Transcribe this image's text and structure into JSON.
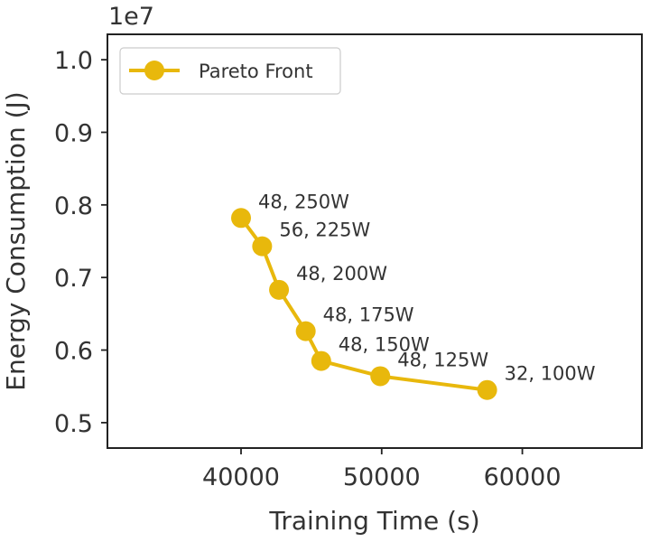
{
  "chart_data": {
    "type": "line",
    "xlabel": "Training Time (s)",
    "ylabel": "Energy Consumption (J)",
    "y_offset_label": "1e7",
    "xlim": [
      30500,
      68500
    ],
    "ylim": [
      0.465,
      1.035
    ],
    "xticks": [
      40000,
      50000,
      60000
    ],
    "xtick_labels": [
      "40000",
      "50000",
      "60000"
    ],
    "yticks": [
      0.5,
      0.6,
      0.7,
      0.8,
      0.9,
      1.0
    ],
    "ytick_labels": [
      "0.5",
      "0.6",
      "0.7",
      "0.8",
      "0.9",
      "1.0"
    ],
    "grid": false,
    "legend_position": "top-left",
    "series": [
      {
        "name": "Pareto Front",
        "color": "#E8B80C",
        "marker": "circle",
        "points": [
          {
            "x": 40000,
            "y": 0.782,
            "label": "48, 250W"
          },
          {
            "x": 41500,
            "y": 0.743,
            "label": "56, 225W"
          },
          {
            "x": 42700,
            "y": 0.683,
            "label": "48, 200W"
          },
          {
            "x": 44600,
            "y": 0.626,
            "label": "48, 175W"
          },
          {
            "x": 45700,
            "y": 0.585,
            "label": "48, 150W"
          },
          {
            "x": 49900,
            "y": 0.564,
            "label": "48, 125W"
          },
          {
            "x": 57500,
            "y": 0.545,
            "label": "32, 100W"
          }
        ]
      }
    ]
  }
}
